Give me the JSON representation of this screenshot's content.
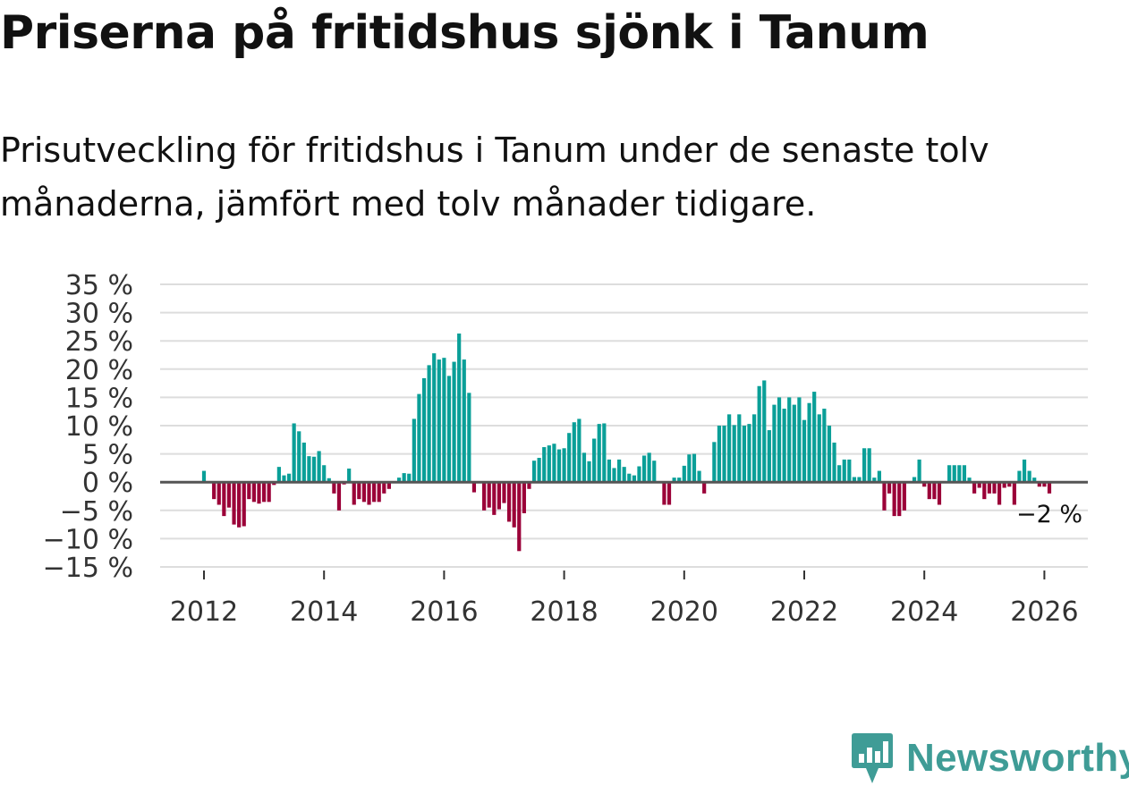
{
  "title": "Priserna på fritidshus sjönk i Tanum",
  "subtitle": "Prisutveckling för fritidshus i Tanum under de senaste tolv månaderna, jämfört med tolv månader tidigare.",
  "logo": {
    "text": "Newsworthy"
  },
  "colors": {
    "positive": "#0a9f98",
    "negative": "#9b0038",
    "grid": "#dddddd",
    "baseline": "#555555",
    "logo": "#3f9c96"
  },
  "chart_data": {
    "type": "bar",
    "title": "Priserna på fritidshus sjönk i Tanum",
    "ylabel": "",
    "xlabel": "",
    "ylim": [
      -15,
      35
    ],
    "y_ticks": [
      -15,
      -10,
      -5,
      0,
      5,
      10,
      15,
      20,
      25,
      30,
      35
    ],
    "y_tick_labels": [
      "−15 %",
      "−10 %",
      "−5 %",
      "0 %",
      "5 %",
      "10 %",
      "15 %",
      "20 %",
      "25 %",
      "30 %",
      "35 %"
    ],
    "x_ticks": [
      2012,
      2014,
      2016,
      2018,
      2020,
      2022,
      2024,
      2026
    ],
    "x_tick_labels": [
      "2012",
      "2014",
      "2016",
      "2018",
      "2020",
      "2022",
      "2024",
      "2026"
    ],
    "end_label": "−2 %",
    "series": [
      {
        "name": "Prisutveckling",
        "start": "2012-01",
        "frequency": "monthly",
        "values": [
          2.0,
          0,
          -3.0,
          -4.0,
          -6.0,
          -4.5,
          -7.5,
          -8.0,
          -7.8,
          -3.0,
          -3.5,
          -3.8,
          -3.5,
          -3.5,
          -0.5,
          2.7,
          1.2,
          1.5,
          10.4,
          9.0,
          7.0,
          4.6,
          4.5,
          5.5,
          3.0,
          0.7,
          -2.0,
          -5.0,
          -0.4,
          2.4,
          -4.0,
          -3.0,
          -3.5,
          -4.0,
          -3.5,
          -3.5,
          -2.0,
          -1.2,
          0,
          0.8,
          1.6,
          1.5,
          11.2,
          15.6,
          18.4,
          20.7,
          22.8,
          21.7,
          22.0,
          18.8,
          21.3,
          26.3,
          21.7,
          15.8,
          -1.8,
          0,
          -5.0,
          -4.5,
          -5.8,
          -4.8,
          -3.7,
          -7.0,
          -8.0,
          -12.2,
          -5.5,
          -1.2,
          3.8,
          4.3,
          6.2,
          6.5,
          6.8,
          5.8,
          6.0,
          8.7,
          10.6,
          11.2,
          5.2,
          3.7,
          7.7,
          10.3,
          10.4,
          4.0,
          2.5,
          4.0,
          2.7,
          1.5,
          1.2,
          2.8,
          4.7,
          5.2,
          3.8,
          0,
          -4.0,
          -4.0,
          0.8,
          0.8,
          2.9,
          4.9,
          5.0,
          2.0,
          -2.0,
          0,
          7.1,
          10.0,
          10.0,
          12.0,
          10.1,
          12.0,
          10.0,
          10.3,
          12.0,
          17.0,
          18.0,
          9.2,
          13.7,
          15.0,
          13.0,
          15.0,
          13.7,
          15.0,
          11.0,
          14.0,
          16.0,
          12.0,
          13.0,
          10.0,
          7.0,
          3.0,
          4.0,
          4.0,
          0.9,
          0.9,
          6.0,
          6.0,
          0.8,
          2.0,
          -5.0,
          -2.0,
          -6.0,
          -6.0,
          -5.0,
          0,
          0.9,
          4.0,
          -0.8,
          -3.0,
          -3.0,
          -4.0,
          0,
          3.0,
          3.0,
          3.0,
          3.0,
          0.8,
          -2.0,
          -1.0,
          -3.0,
          -2.0,
          -2.0,
          -4.0,
          -1.0,
          -0.8,
          -4.0,
          2.0,
          4.0,
          2.0,
          0.8,
          -0.8,
          -0.8,
          -2.0
        ]
      }
    ]
  }
}
